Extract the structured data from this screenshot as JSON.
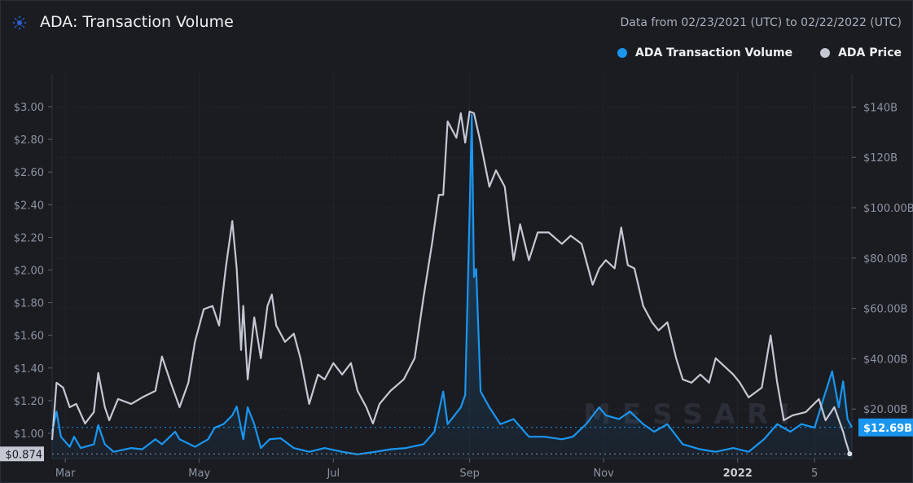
{
  "header": {
    "title": "ADA: Transaction Volume",
    "date_range": "Data from 02/23/2021 (UTC) to 02/22/2022 (UTC)",
    "logo_icon": "cardano-logo-icon"
  },
  "watermark": "MESSARI",
  "chart_data": {
    "type": "line",
    "title": "ADA: Transaction Volume",
    "x_unit": "days since 02/23/2021",
    "x_tick_labels": [
      {
        "label": "Mar",
        "day": 6,
        "bold": false
      },
      {
        "label": "May",
        "day": 67,
        "bold": false
      },
      {
        "label": "Jul",
        "day": 128,
        "bold": false
      },
      {
        "label": "Sep",
        "day": 190,
        "bold": false
      },
      {
        "label": "Nov",
        "day": 251,
        "bold": false
      },
      {
        "label": "2022",
        "day": 312,
        "bold": true
      },
      {
        "label": "5",
        "day": 347,
        "bold": false
      }
    ],
    "left_axis": {
      "label": "ADA Price",
      "range": [
        0.85,
        3.2
      ],
      "ticks": [
        {
          "v": 3.0,
          "t": "$3.00"
        },
        {
          "v": 2.8,
          "t": "$2.80"
        },
        {
          "v": 2.6,
          "t": "$2.60"
        },
        {
          "v": 2.4,
          "t": "$2.40"
        },
        {
          "v": 2.2,
          "t": "$2.20"
        },
        {
          "v": 2.0,
          "t": "$2.00"
        },
        {
          "v": 1.8,
          "t": "$1.80"
        },
        {
          "v": 1.6,
          "t": "$1.60"
        },
        {
          "v": 1.4,
          "t": "$1.40"
        },
        {
          "v": 1.2,
          "t": "$1.20"
        },
        {
          "v": 1.0,
          "t": "$1.00"
        }
      ]
    },
    "right_axis": {
      "label": "ADA Transaction Volume",
      "range": [
        0,
        153
      ],
      "ticks": [
        {
          "v": 140,
          "t": "$140B"
        },
        {
          "v": 120,
          "t": "$120B"
        },
        {
          "v": 100,
          "t": "$100.00B"
        },
        {
          "v": 80,
          "t": "$80.00B"
        },
        {
          "v": 60,
          "t": "$60.00B"
        },
        {
          "v": 40,
          "t": "$40.00B"
        },
        {
          "v": 20,
          "t": "$20.00B"
        }
      ]
    },
    "legend_position": "top-right",
    "series": [
      {
        "name": "ADA Transaction Volume",
        "color": "#1a96f0",
        "axis": "right",
        "last_value_label": "$12.69B",
        "last_value": 12.69,
        "points": [
          [
            0,
            11
          ],
          [
            2,
            19
          ],
          [
            4,
            9
          ],
          [
            8,
            5
          ],
          [
            10,
            9
          ],
          [
            13,
            4.5
          ],
          [
            19,
            6
          ],
          [
            21,
            13.6
          ],
          [
            24,
            6
          ],
          [
            28,
            3
          ],
          [
            36,
            4.5
          ],
          [
            41,
            4
          ],
          [
            47,
            8
          ],
          [
            50,
            6
          ],
          [
            56,
            11
          ],
          [
            58,
            8
          ],
          [
            65,
            5
          ],
          [
            71,
            8
          ],
          [
            74,
            12.6
          ],
          [
            78,
            14
          ],
          [
            82,
            17.5
          ],
          [
            84,
            21
          ],
          [
            87,
            8
          ],
          [
            89,
            20.7
          ],
          [
            92,
            14
          ],
          [
            95,
            4.5
          ],
          [
            99,
            8
          ],
          [
            104,
            8.4
          ],
          [
            110,
            4.5
          ],
          [
            117,
            3
          ],
          [
            124,
            4.5
          ],
          [
            132,
            3
          ],
          [
            139,
            2
          ],
          [
            147,
            3
          ],
          [
            154,
            4
          ],
          [
            161,
            4.5
          ],
          [
            169,
            6
          ],
          [
            174,
            11
          ],
          [
            178,
            27
          ],
          [
            180,
            14
          ],
          [
            186,
            20.7
          ],
          [
            188,
            25.6
          ],
          [
            190,
            98
          ],
          [
            191,
            137
          ],
          [
            192,
            72.5
          ],
          [
            193,
            75.7
          ],
          [
            195,
            27
          ],
          [
            199,
            20.7
          ],
          [
            204,
            14
          ],
          [
            210,
            16
          ],
          [
            217,
            9
          ],
          [
            224,
            9
          ],
          [
            232,
            8
          ],
          [
            237,
            9
          ],
          [
            243,
            14
          ],
          [
            249,
            20.7
          ],
          [
            252,
            17.5
          ],
          [
            258,
            16
          ],
          [
            263,
            19
          ],
          [
            269,
            14
          ],
          [
            274,
            11
          ],
          [
            280,
            14
          ],
          [
            287,
            6
          ],
          [
            295,
            4
          ],
          [
            302,
            3
          ],
          [
            310,
            4.5
          ],
          [
            317,
            3
          ],
          [
            324,
            8
          ],
          [
            330,
            14
          ],
          [
            336,
            11
          ],
          [
            341,
            14
          ],
          [
            347,
            12.6
          ],
          [
            351,
            24
          ],
          [
            355,
            35
          ],
          [
            358,
            20.7
          ],
          [
            360,
            31
          ],
          [
            362,
            16
          ],
          [
            364,
            12.69
          ]
        ]
      },
      {
        "name": "ADA Price",
        "color": "#c5c8d2",
        "axis": "left",
        "last_value_label": "$0.874",
        "last_value": 0.874,
        "points": [
          [
            0,
            0.96
          ],
          [
            2,
            1.31
          ],
          [
            5,
            1.28
          ],
          [
            8,
            1.16
          ],
          [
            11,
            1.18
          ],
          [
            15,
            1.06
          ],
          [
            19,
            1.13
          ],
          [
            21,
            1.37
          ],
          [
            24,
            1.16
          ],
          [
            26,
            1.08
          ],
          [
            30,
            1.21
          ],
          [
            36,
            1.18
          ],
          [
            41,
            1.22
          ],
          [
            47,
            1.26
          ],
          [
            50,
            1.47
          ],
          [
            54,
            1.31
          ],
          [
            58,
            1.16
          ],
          [
            62,
            1.31
          ],
          [
            65,
            1.56
          ],
          [
            69,
            1.76
          ],
          [
            73,
            1.78
          ],
          [
            76,
            1.66
          ],
          [
            79,
            2.01
          ],
          [
            82,
            2.3
          ],
          [
            84,
            2.01
          ],
          [
            86,
            1.51
          ],
          [
            87,
            1.78
          ],
          [
            89,
            1.33
          ],
          [
            92,
            1.71
          ],
          [
            95,
            1.46
          ],
          [
            98,
            1.78
          ],
          [
            100,
            1.85
          ],
          [
            102,
            1.66
          ],
          [
            106,
            1.56
          ],
          [
            110,
            1.61
          ],
          [
            113,
            1.46
          ],
          [
            117,
            1.18
          ],
          [
            121,
            1.36
          ],
          [
            124,
            1.33
          ],
          [
            128,
            1.43
          ],
          [
            132,
            1.36
          ],
          [
            136,
            1.43
          ],
          [
            139,
            1.26
          ],
          [
            143,
            1.16
          ],
          [
            146,
            1.06
          ],
          [
            149,
            1.18
          ],
          [
            154,
            1.26
          ],
          [
            160,
            1.33
          ],
          [
            165,
            1.46
          ],
          [
            169,
            1.83
          ],
          [
            173,
            2.17
          ],
          [
            176,
            2.46
          ],
          [
            178,
            2.46
          ],
          [
            180,
            2.91
          ],
          [
            184,
            2.81
          ],
          [
            186,
            2.96
          ],
          [
            188,
            2.78
          ],
          [
            190,
            2.97
          ],
          [
            192,
            2.96
          ],
          [
            195,
            2.78
          ],
          [
            199,
            2.51
          ],
          [
            202,
            2.61
          ],
          [
            206,
            2.51
          ],
          [
            210,
            2.06
          ],
          [
            213,
            2.28
          ],
          [
            217,
            2.06
          ],
          [
            221,
            2.23
          ],
          [
            226,
            2.23
          ],
          [
            232,
            2.16
          ],
          [
            236,
            2.21
          ],
          [
            241,
            2.16
          ],
          [
            246,
            1.91
          ],
          [
            249,
            2.01
          ],
          [
            252,
            2.06
          ],
          [
            256,
            2.01
          ],
          [
            259,
            2.26
          ],
          [
            262,
            2.03
          ],
          [
            265,
            2.01
          ],
          [
            269,
            1.78
          ],
          [
            273,
            1.68
          ],
          [
            276,
            1.63
          ],
          [
            280,
            1.68
          ],
          [
            284,
            1.46
          ],
          [
            287,
            1.33
          ],
          [
            291,
            1.31
          ],
          [
            295,
            1.36
          ],
          [
            299,
            1.31
          ],
          [
            302,
            1.46
          ],
          [
            306,
            1.41
          ],
          [
            310,
            1.36
          ],
          [
            313,
            1.31
          ],
          [
            317,
            1.22
          ],
          [
            323,
            1.28
          ],
          [
            327,
            1.6
          ],
          [
            330,
            1.31
          ],
          [
            333,
            1.08
          ],
          [
            337,
            1.11
          ],
          [
            343,
            1.13
          ],
          [
            349,
            1.21
          ],
          [
            352,
            1.08
          ],
          [
            356,
            1.16
          ],
          [
            360,
            1.01
          ],
          [
            361,
            0.96
          ],
          [
            363,
            0.874
          ]
        ]
      }
    ]
  }
}
